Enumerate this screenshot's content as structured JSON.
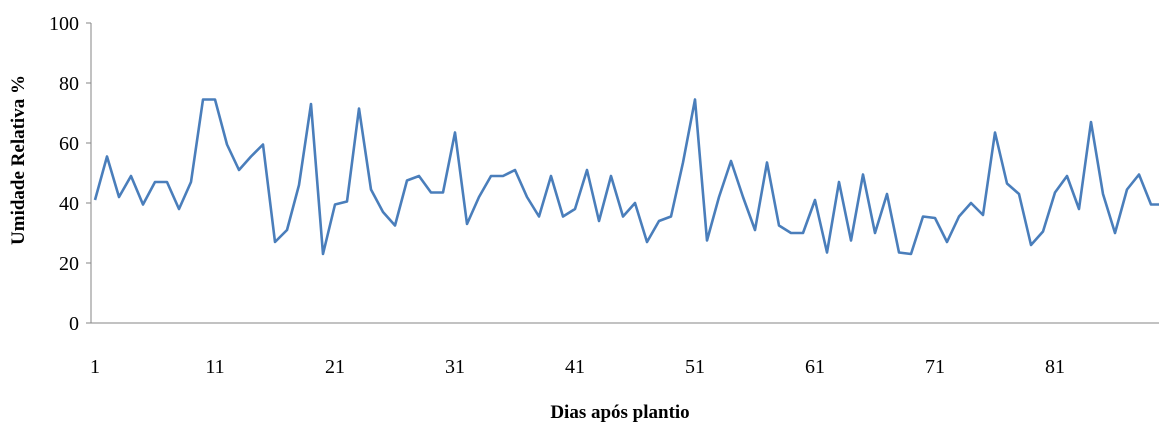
{
  "chart_data": {
    "type": "line",
    "xlabel": "Dias após plantio",
    "ylabel": "Umidade Relativa %",
    "ylim": [
      0,
      100
    ],
    "yticks": [
      0,
      20,
      40,
      60,
      80,
      100
    ],
    "xticks": [
      1,
      11,
      21,
      31,
      41,
      51,
      61,
      71,
      81
    ],
    "grid": false,
    "legend": "none",
    "line_color": "#4A7EBB",
    "series": [
      {
        "x": [
          1,
          2,
          3,
          4,
          5,
          6,
          7,
          8,
          9,
          10,
          11,
          12,
          13,
          14,
          15,
          16,
          17,
          18,
          19,
          20,
          21,
          22,
          23,
          24,
          25,
          26,
          27,
          28,
          29,
          30,
          31,
          32,
          33,
          34,
          35,
          36,
          37,
          38,
          39,
          40,
          41,
          42,
          43,
          44,
          45,
          46,
          47,
          48,
          49,
          50,
          51,
          52,
          53,
          54,
          55,
          56,
          57,
          58,
          59,
          60,
          61,
          62,
          63,
          64,
          65,
          66,
          67,
          68,
          69,
          70,
          71,
          72,
          73,
          74,
          75,
          76,
          77,
          78,
          79,
          80,
          81,
          82,
          83,
          84,
          85,
          86,
          87,
          88,
          89,
          90
        ],
        "values": [
          41,
          55.5,
          42,
          49,
          39.5,
          47,
          47,
          38,
          47,
          74.5,
          74.5,
          59.5,
          51,
          55.5,
          59.5,
          27,
          31,
          46,
          73,
          23,
          39.5,
          40.5,
          71.5,
          44.5,
          37,
          32.5,
          47.5,
          49,
          43.5,
          43.5,
          63.5,
          33,
          42,
          49,
          49,
          51,
          42,
          35.5,
          49,
          35.5,
          38,
          51,
          34,
          49,
          35.5,
          40,
          27,
          34,
          35.5,
          53.5,
          74.5,
          27.5,
          42,
          54,
          42,
          31,
          53.5,
          32.5,
          30,
          30,
          41,
          23.5,
          47,
          27.5,
          49.5,
          30,
          43,
          23.5,
          23,
          35.5,
          35,
          27,
          35.5,
          40,
          36,
          63.5,
          46.5,
          43,
          26,
          30.5,
          43.5,
          49,
          38,
          67,
          43,
          30,
          44.5,
          49.5,
          39.5,
          39.5
        ]
      }
    ]
  }
}
